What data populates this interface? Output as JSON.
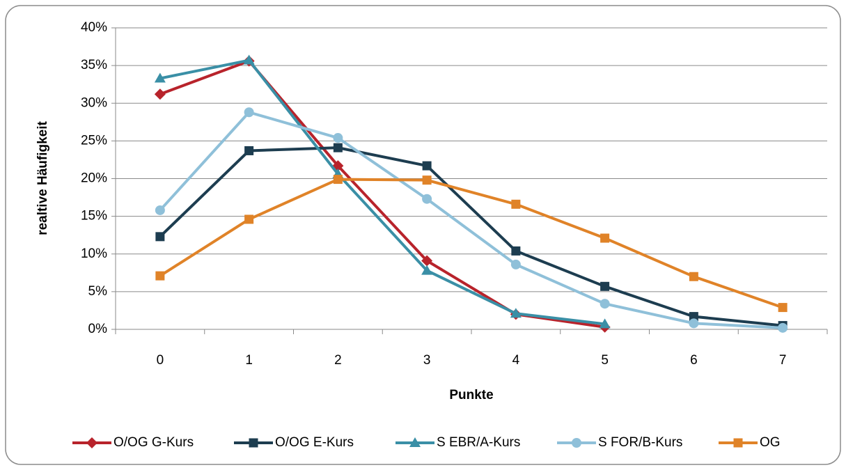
{
  "chart_data": {
    "type": "line",
    "x_label": "Punkte",
    "y_label": "realtive Häufigkeit",
    "categories": [
      "0",
      "1",
      "2",
      "3",
      "4",
      "5",
      "6",
      "7"
    ],
    "ylim": [
      0,
      40
    ],
    "yticks": [
      {
        "value": 0,
        "label": "0%"
      },
      {
        "value": 5,
        "label": "5%"
      },
      {
        "value": 10,
        "label": "10%"
      },
      {
        "value": 15,
        "label": "15%"
      },
      {
        "value": 20,
        "label": "20%"
      },
      {
        "value": 25,
        "label": "25%"
      },
      {
        "value": 30,
        "label": "30%"
      },
      {
        "value": 35,
        "label": "35%"
      },
      {
        "value": 40,
        "label": "40%"
      }
    ],
    "grid": true,
    "legend": "bottom",
    "series": [
      {
        "name": "O/OG G-Kurs",
        "color": "#b8232b",
        "marker": "diamond",
        "values": [
          31.2,
          35.6,
          21.7,
          9.1,
          2.0,
          0.3,
          null,
          null
        ]
      },
      {
        "name": "O/OG E-Kurs",
        "color": "#1d3d50",
        "marker": "square",
        "values": [
          12.3,
          23.7,
          24.1,
          21.7,
          10.4,
          5.7,
          1.7,
          0.5
        ]
      },
      {
        "name": "S EBR/A-Kurs",
        "color": "#3a8fa6",
        "marker": "triangle",
        "values": [
          33.3,
          35.7,
          20.6,
          7.8,
          2.1,
          0.7,
          null,
          null
        ]
      },
      {
        "name": "S FOR/B-Kurs",
        "color": "#8fc0d9",
        "marker": "circle",
        "values": [
          15.8,
          28.8,
          25.4,
          17.3,
          8.6,
          3.4,
          0.8,
          0.2
        ]
      },
      {
        "name": "OG",
        "color": "#e08328",
        "marker": "square",
        "values": [
          7.1,
          14.6,
          19.9,
          19.8,
          16.6,
          12.1,
          7.0,
          2.9
        ]
      }
    ]
  }
}
